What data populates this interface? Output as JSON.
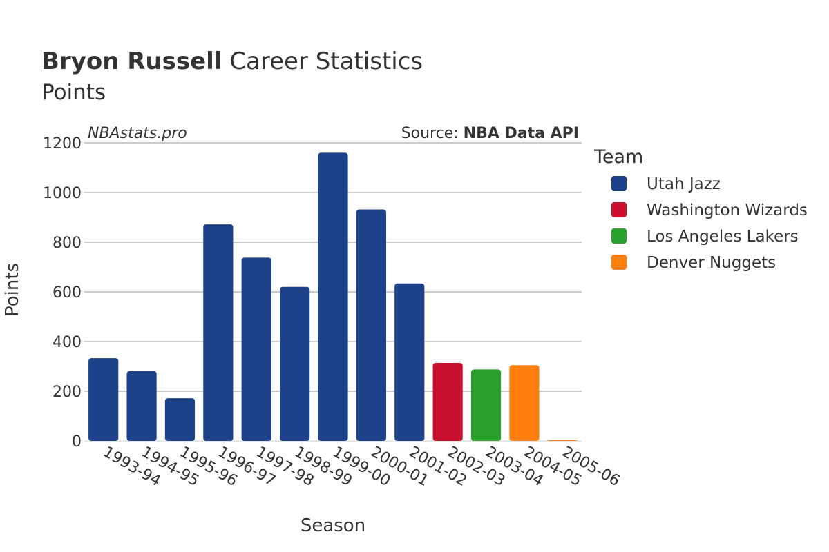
{
  "header": {
    "title_bold": "Bryon Russell",
    "title_rest": " Career Statistics",
    "subtitle": "Points"
  },
  "watermark": "NBAstats.pro",
  "source": {
    "prefix": "Source: ",
    "name": "NBA Data API"
  },
  "legend": {
    "title": "Team",
    "placement": "right",
    "items": [
      {
        "label": "Utah Jazz",
        "color": "#1d428a"
      },
      {
        "label": "Washington Wizards",
        "color": "#c8102e"
      },
      {
        "label": "Los Angeles Lakers",
        "color": "#2ca02c"
      },
      {
        "label": "Denver Nuggets",
        "color": "#ff7f0e"
      }
    ]
  },
  "chart_data": {
    "type": "bar",
    "xlabel": "Season",
    "ylabel": "Points",
    "ylim": [
      0,
      1200
    ],
    "yticks": [
      0,
      200,
      400,
      600,
      800,
      1000,
      1200
    ],
    "grid": true,
    "categories": [
      "1993-94",
      "1994-95",
      "1995-96",
      "1996-97",
      "1997-98",
      "1998-99",
      "1999-00",
      "2000-01",
      "2001-02",
      "2002-03",
      "2003-04",
      "2004-05",
      "2005-06"
    ],
    "values": [
      333,
      281,
      172,
      872,
      738,
      620,
      1160,
      932,
      634,
      314,
      288,
      305,
      3
    ],
    "teams": [
      "Utah Jazz",
      "Utah Jazz",
      "Utah Jazz",
      "Utah Jazz",
      "Utah Jazz",
      "Utah Jazz",
      "Utah Jazz",
      "Utah Jazz",
      "Utah Jazz",
      "Washington Wizards",
      "Los Angeles Lakers",
      "Denver Nuggets",
      "Denver Nuggets"
    ]
  }
}
